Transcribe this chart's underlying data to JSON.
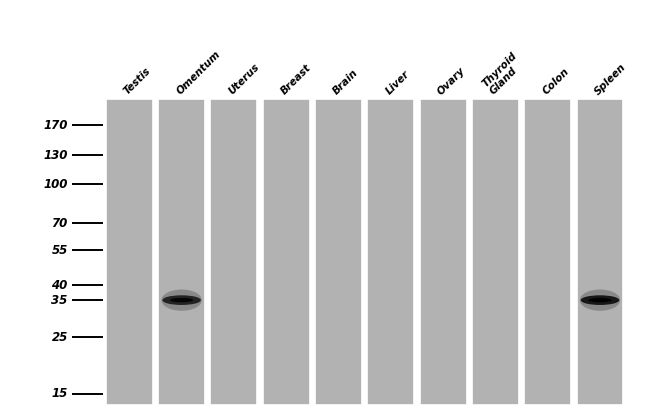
{
  "lanes": [
    "Testis",
    "Omentum",
    "Uterus",
    "Breast",
    "Brain",
    "Liver",
    "Ovary",
    "Thyroid\nGland",
    "Colon",
    "Spleen"
  ],
  "mw_markers": [
    170,
    130,
    100,
    70,
    55,
    40,
    35,
    25,
    15
  ],
  "band_info": [
    {
      "lane": 1,
      "mw": 35,
      "intensity": 0.85
    },
    {
      "lane": 9,
      "mw": 35,
      "intensity": 0.95
    }
  ],
  "lane_color": "#b2b2b2",
  "band_color": "#111111",
  "bg_color": "#ffffff",
  "fig_width": 6.5,
  "fig_height": 4.18,
  "dpi": 100
}
